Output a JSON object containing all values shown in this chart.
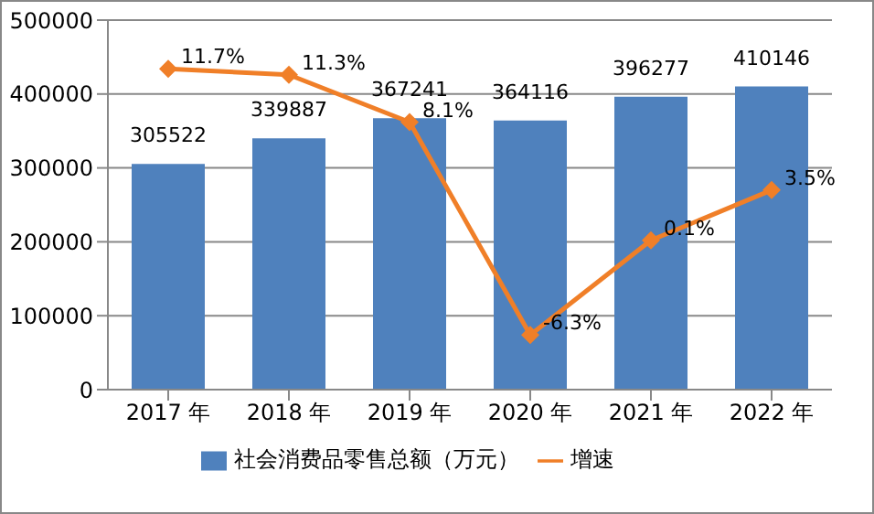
{
  "chart_data": {
    "type": "bar",
    "categories": [
      "2017 年",
      "2018 年",
      "2019 年",
      "2020 年",
      "2021 年",
      "2022 年"
    ],
    "series": [
      {
        "name": "社会消费品零售总额（万元）",
        "color": "#4f81bd",
        "values": [
          305522,
          339887,
          367241,
          364116,
          396277,
          410146
        ],
        "value_labels": [
          "305522",
          "339887",
          "367241",
          "364116",
          "396277",
          "410146"
        ]
      },
      {
        "name": "增速",
        "type": "line",
        "axis": "y2",
        "color": "#f07f28",
        "marker": "diamond",
        "values": [
          11.7,
          11.3,
          8.1,
          -6.3,
          0.1,
          3.5
        ],
        "value_labels": [
          "11.7%",
          "11.3%",
          "8.1%",
          "-6.3%",
          "0.1%",
          "3.5%"
        ]
      }
    ],
    "ylim": [
      0,
      500000
    ],
    "yticks": [
      0,
      100000,
      200000,
      300000,
      400000,
      500000
    ],
    "y2lim": [
      -10,
      15
    ],
    "grid": "y",
    "legend": "bottom"
  }
}
